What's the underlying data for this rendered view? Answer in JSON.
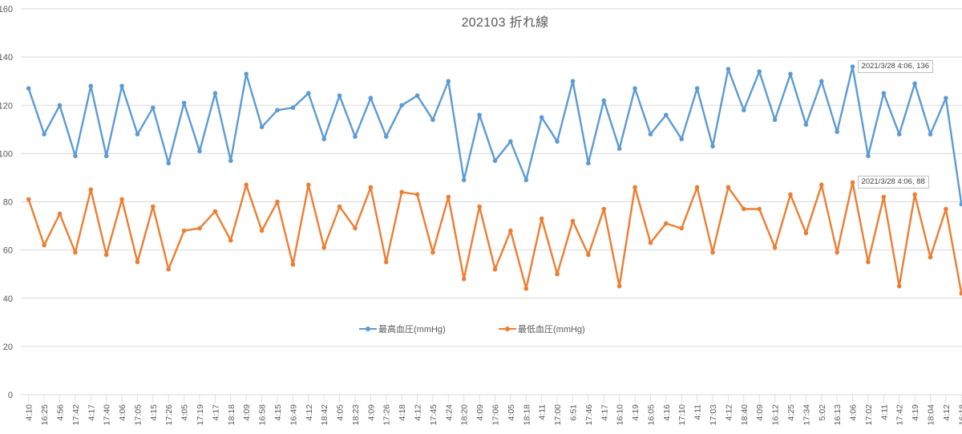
{
  "chart_data": {
    "type": "line",
    "title": "202103  折れ線",
    "xlabel": "",
    "ylabel": "",
    "ylim": [
      0,
      160
    ],
    "yticks": [
      0,
      20,
      40,
      60,
      80,
      100,
      120,
      140,
      160
    ],
    "grid": true,
    "legend_position": "bottom-inside",
    "categories": [
      "4:10",
      "16:25",
      "4:56",
      "17:42",
      "4:17",
      "17:40",
      "4:06",
      "17:05",
      "4:15",
      "17:26",
      "4:05",
      "17:19",
      "4:17",
      "18:18",
      "4:09",
      "16:58",
      "4:15",
      "16:49",
      "4:12",
      "18:42",
      "4:05",
      "18:23",
      "4:09",
      "17:26",
      "4:18",
      "4:12",
      "17:45",
      "4:24",
      "18:20",
      "4:09",
      "17:06",
      "4:05",
      "18:18",
      "4:11",
      "17:00",
      "6:51",
      "17:46",
      "4:17",
      "16:10",
      "4:19",
      "16:05",
      "4:16",
      "17:10",
      "4:11",
      "17:03",
      "4:12",
      "18:40",
      "4:09",
      "16:12",
      "4:25",
      "17:34",
      "5:02",
      "16:13",
      "4:06",
      "17:02",
      "4:11",
      "17:42",
      "4:19",
      "18:04",
      "4:12",
      "16:18"
    ],
    "series": [
      {
        "name": "最高血圧(mmHg)",
        "color": "#5B9BD5",
        "values": [
          127,
          108,
          120,
          99,
          128,
          99,
          128,
          108,
          119,
          96,
          121,
          101,
          125,
          97,
          133,
          111,
          118,
          119,
          125,
          106,
          124,
          107,
          123,
          107,
          120,
          124,
          114,
          130,
          89,
          116,
          97,
          105,
          89,
          115,
          105,
          130,
          96,
          122,
          102,
          127,
          108,
          116,
          106,
          127,
          103,
          135,
          118,
          134,
          114,
          133,
          112,
          130,
          109,
          136,
          99,
          125,
          108,
          129,
          108,
          123,
          79
        ]
      },
      {
        "name": "最低血圧(mmHg)",
        "color": "#ED7D31",
        "values": [
          81,
          62,
          75,
          59,
          85,
          58,
          81,
          55,
          78,
          52,
          68,
          69,
          76,
          64,
          87,
          68,
          80,
          54,
          87,
          61,
          78,
          69,
          86,
          55,
          84,
          83,
          59,
          82,
          48,
          78,
          52,
          68,
          44,
          73,
          50,
          72,
          58,
          77,
          45,
          86,
          63,
          71,
          69,
          86,
          59,
          86,
          77,
          77,
          61,
          83,
          67,
          87,
          59,
          88,
          55,
          82,
          45,
          83,
          57,
          77,
          42
        ]
      }
    ],
    "annotations": [
      {
        "series": 0,
        "index": 53,
        "text": "2021/3/28 4:06, 136"
      },
      {
        "series": 1,
        "index": 53,
        "text": "2021/3/28 4:06, 88"
      }
    ]
  },
  "ui": {
    "gridline_color": "#d9d9d9",
    "axis_text_color": "#595959"
  }
}
